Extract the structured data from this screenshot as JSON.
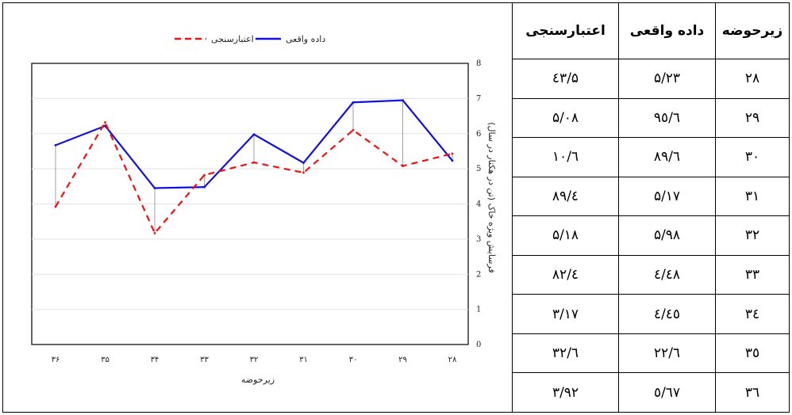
{
  "table": {
    "headers": [
      "زیرحوضه",
      "داده واقعی",
      "اعتبارسنجی"
    ],
    "rows": [
      [
        "۲۸",
        "۵/۲۳",
        "۵/٤۳"
      ],
      [
        "۲۹",
        "٦/۹٥",
        "۵/۰۸"
      ],
      [
        "۳۰",
        "٦/۸۹",
        "٦/۱۰"
      ],
      [
        "۳۱",
        "۵/۱۷",
        "٤/۸۹"
      ],
      [
        "۳۲",
        "۵/۹۸",
        "۵/۱۸"
      ],
      [
        "۳۳",
        "٤/٤۸",
        "٤/۸۲"
      ],
      [
        "۳٤",
        "٤/٤٥",
        "۳/۱۷"
      ],
      [
        "۳٥",
        "٦/۲۲",
        "٦/۳۲"
      ],
      [
        "۳٦",
        "٥/٦۷",
        "۳/۹۲"
      ]
    ]
  },
  "chart_data": {
    "type": "line",
    "categories": [
      "۳۶",
      "۳۵",
      "۳۴",
      "۳۳",
      "۳۲",
      "۳۱",
      "۳۰",
      "۲۹",
      "۲۸"
    ],
    "series": [
      {
        "name": "داده واقعی",
        "color": "#1010e0",
        "style": "solid",
        "values": [
          5.67,
          6.22,
          4.45,
          4.48,
          5.98,
          5.17,
          6.89,
          6.95,
          5.23
        ]
      },
      {
        "name": "اعتبارسنجی",
        "color": "#ee1111",
        "style": "dashed",
        "values": [
          3.92,
          6.32,
          3.17,
          4.82,
          5.18,
          4.89,
          6.1,
          5.08,
          5.43
        ]
      }
    ],
    "xlabel": "زیرحوضه",
    "ylabel": "فرسایش ویژه خاک (تن در هکتار در سال)",
    "ylim": [
      0,
      8
    ],
    "yticks": [
      "0",
      "1",
      "2",
      "3",
      "4",
      "5",
      "6",
      "7",
      "8"
    ],
    "grid": true,
    "legend_position": "top",
    "y_axis_side": "right"
  }
}
